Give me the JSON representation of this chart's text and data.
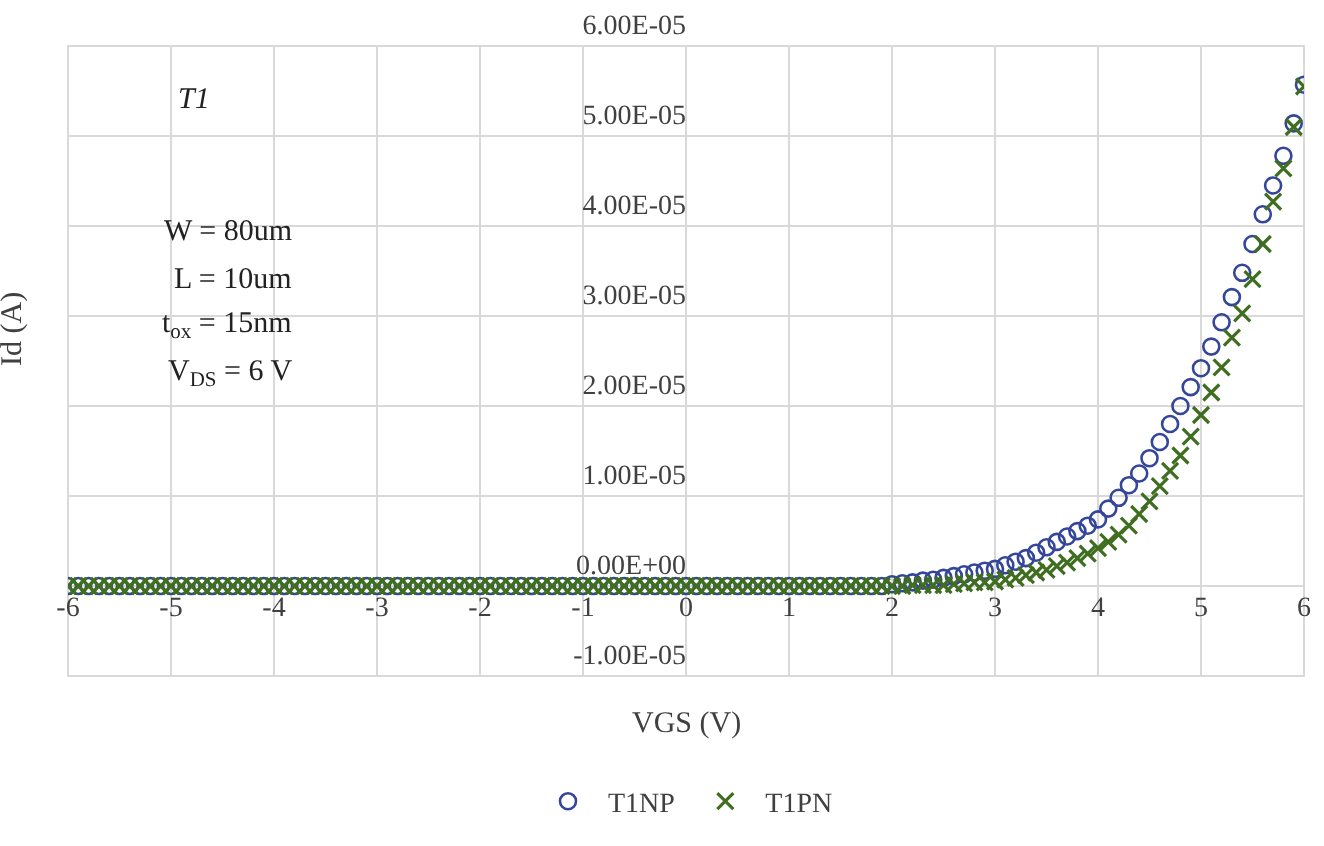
{
  "chart_data": {
    "type": "scatter",
    "xlabel": "VGS (V)",
    "ylabel": "Id (A)",
    "annotations": [
      "T1",
      "W = 80um",
      "L = 10um",
      "t$_{ox}$ = 15nm",
      "V$_{DS}$ = 6 V"
    ],
    "x": [
      -6,
      -5.9,
      -5.8,
      -5.7,
      -5.6,
      -5.5,
      -5.4,
      -5.3,
      -5.2,
      -5.1,
      -5,
      -4.9,
      -4.8,
      -4.7,
      -4.6,
      -4.5,
      -4.4,
      -4.3,
      -4.2,
      -4.1,
      -4,
      -3.9,
      -3.8,
      -3.7,
      -3.6,
      -3.5,
      -3.4,
      -3.3,
      -3.2,
      -3.1,
      -3,
      -2.9,
      -2.8,
      -2.7,
      -2.6,
      -2.5,
      -2.4,
      -2.3,
      -2.2,
      -2.1,
      -2,
      -1.9,
      -1.8,
      -1.7,
      -1.6,
      -1.5,
      -1.4,
      -1.3,
      -1.2,
      -1.1,
      -1,
      -0.9,
      -0.8,
      -0.7,
      -0.6,
      -0.5,
      -0.4,
      -0.3,
      -0.2,
      -0.1,
      0,
      0.1,
      0.2,
      0.3,
      0.4,
      0.5,
      0.6,
      0.7,
      0.8,
      0.9,
      1,
      1.1,
      1.2,
      1.3,
      1.4,
      1.5,
      1.6,
      1.7,
      1.8,
      1.9,
      2,
      2.1,
      2.2,
      2.3,
      2.4,
      2.5,
      2.6,
      2.7,
      2.8,
      2.9,
      3,
      3.1,
      3.2,
      3.3,
      3.4,
      3.5,
      3.6,
      3.7,
      3.8,
      3.9,
      4,
      4.1,
      4.2,
      4.3,
      4.4,
      4.5,
      4.6,
      4.7,
      4.8,
      4.9,
      5,
      5.1,
      5.2,
      5.3,
      5.4,
      5.5,
      5.6,
      5.7,
      5.8,
      5.9,
      6
    ],
    "series": [
      {
        "name": "T1NP",
        "color": "#34469a",
        "marker": "circle",
        "values": [
          0,
          0,
          0,
          0,
          0,
          0,
          0,
          0,
          0,
          0,
          0,
          0,
          0,
          0,
          0,
          0,
          0,
          0,
          0,
          0,
          0,
          0,
          0,
          0,
          0,
          0,
          0,
          0,
          0,
          0,
          0,
          0,
          0,
          0,
          0,
          0,
          0,
          0,
          0,
          0,
          0,
          0,
          0,
          0,
          0,
          0,
          0,
          0,
          0,
          0,
          0,
          0,
          0,
          0,
          0,
          0,
          0,
          0,
          0,
          0,
          0,
          0,
          0,
          0,
          0,
          0,
          0,
          0,
          0,
          0,
          0,
          0,
          0,
          0,
          0,
          0,
          0,
          0,
          0,
          0,
          2e-07,
          3e-07,
          4e-07,
          6e-07,
          7e-07,
          9e-07,
          1.1e-06,
          1.3e-06,
          1.5e-06,
          1.7e-06,
          1.9e-06,
          2.3e-06,
          2.7e-06,
          3.1e-06,
          3.7e-06,
          4.3e-06,
          4.9e-06,
          5.5e-06,
          6.1e-06,
          6.7e-06,
          7.4e-06,
          8.6e-06,
          9.8e-06,
          1.12e-05,
          1.25e-05,
          1.42e-05,
          1.6e-05,
          1.8e-05,
          2e-05,
          2.21e-05,
          2.42e-05,
          2.66e-05,
          2.93e-05,
          3.21e-05,
          3.48e-05,
          3.8e-05,
          4.13e-05,
          4.45e-05,
          4.78e-05,
          5.14e-05,
          5.57e-05
        ]
      },
      {
        "name": "T1PN",
        "color": "#3f6e21",
        "marker": "cross",
        "values": [
          0,
          0,
          0,
          0,
          0,
          0,
          0,
          0,
          0,
          0,
          0,
          0,
          0,
          0,
          0,
          0,
          0,
          0,
          0,
          0,
          0,
          0,
          0,
          0,
          0,
          0,
          0,
          0,
          0,
          0,
          0,
          0,
          0,
          0,
          0,
          0,
          0,
          0,
          0,
          0,
          0,
          0,
          0,
          0,
          0,
          0,
          0,
          0,
          0,
          0,
          0,
          0,
          0,
          0,
          0,
          0,
          0,
          0,
          0,
          0,
          0,
          0,
          0,
          0,
          0,
          0,
          0,
          0,
          0,
          0,
          0,
          0,
          0,
          0,
          0,
          0,
          0,
          0,
          0,
          0,
          0,
          0,
          1e-07,
          1e-07,
          1e-07,
          1e-07,
          2e-07,
          3e-07,
          4e-07,
          4e-07,
          5e-07,
          7e-07,
          9e-07,
          1.2e-06,
          1.5e-06,
          1.8e-06,
          2.2e-06,
          2.6e-06,
          3.1e-06,
          3.6e-06,
          4.2e-06,
          4.9e-06,
          5.7e-06,
          6.7e-06,
          8e-06,
          9.4e-06,
          1.11e-05,
          1.28e-05,
          1.45e-05,
          1.66e-05,
          1.9e-05,
          2.15e-05,
          2.43e-05,
          2.76e-05,
          3.03e-05,
          3.41e-05,
          3.8e-05,
          4.27e-05,
          4.64e-05,
          5.1e-05,
          5.55e-05
        ]
      }
    ],
    "xlim": [
      -6,
      6
    ],
    "xticks": [
      -6,
      -5,
      -4,
      -3,
      -2,
      -1,
      0,
      1,
      2,
      3,
      4,
      5,
      6
    ],
    "ylim": [
      -1e-05,
      6e-05
    ],
    "yticks": [
      {
        "value": -1e-05,
        "label": "-1.00E-05"
      },
      {
        "value": 0,
        "label": "0.00E+00"
      },
      {
        "value": 1e-05,
        "label": "1.00E-05"
      },
      {
        "value": 2e-05,
        "label": "2.00E-05"
      },
      {
        "value": 3e-05,
        "label": "3.00E-05"
      },
      {
        "value": 4e-05,
        "label": "4.00E-05"
      },
      {
        "value": 5e-05,
        "label": "5.00E-05"
      },
      {
        "value": 6e-05,
        "label": "6.00E-05"
      }
    ],
    "grid": true,
    "legend": "bottom"
  }
}
